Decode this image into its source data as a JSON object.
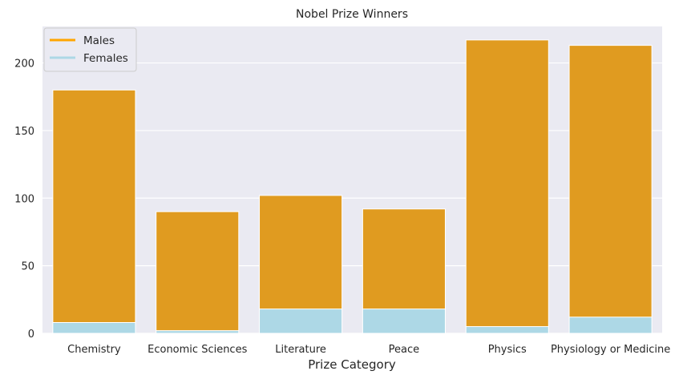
{
  "chart_data": {
    "type": "bar",
    "title": "Nobel Prize Winners",
    "xlabel": "Prize Category",
    "ylabel": "",
    "categories": [
      "Chemistry",
      "Economic Sciences",
      "Literature",
      "Peace",
      "Physics",
      "Physiology or Medicine"
    ],
    "series": [
      {
        "name": "Males",
        "values": [
          180,
          90,
          102,
          92,
          217,
          213
        ],
        "color": "#e09b20"
      },
      {
        "name": "Females",
        "values": [
          8,
          2,
          18,
          18,
          5,
          12
        ],
        "color": "#add8e6"
      }
    ],
    "legend_colors": {
      "Males": "#ffa500",
      "Females": "#add8e6"
    },
    "ylim": [
      0,
      227
    ],
    "yticks": [
      0,
      50,
      100,
      150,
      200
    ],
    "grid": true,
    "legend_position": "top-left",
    "background": "#eaeaf2"
  }
}
